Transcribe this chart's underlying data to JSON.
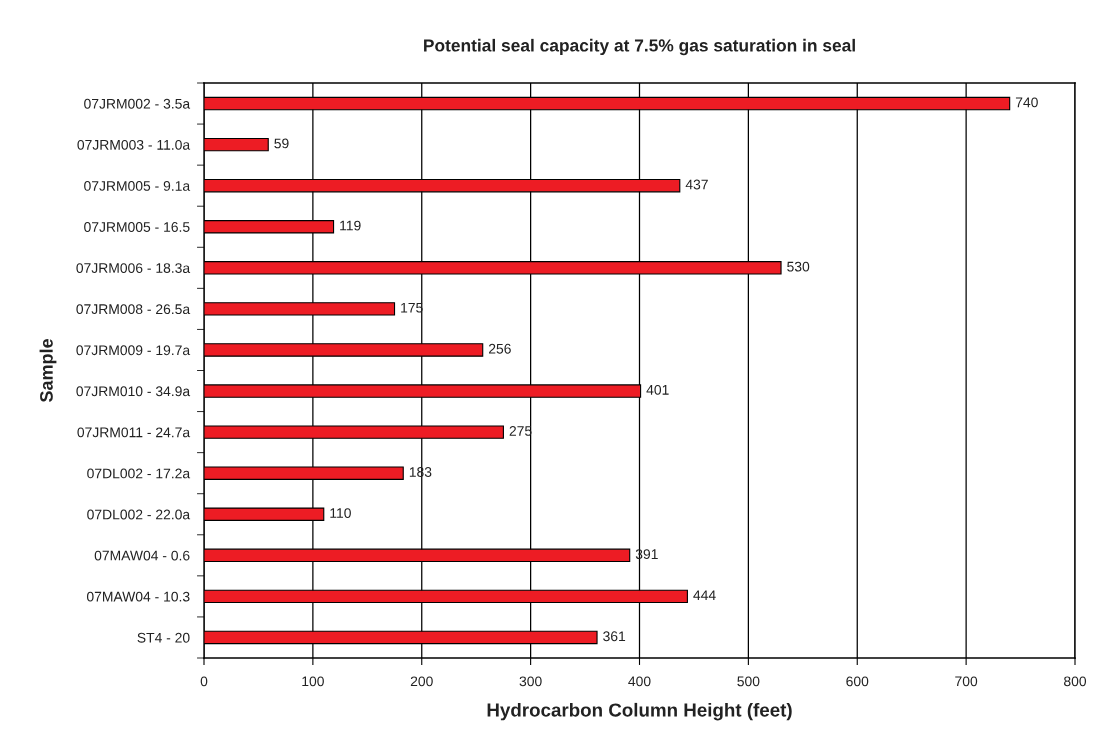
{
  "chart_data": {
    "type": "bar",
    "orientation": "horizontal",
    "title": "Potential seal capacity at 7.5% gas saturation in seal",
    "xlabel": "Hydrocarbon Column Height (feet)",
    "ylabel": "Sample",
    "categories": [
      "07JRM002 - 3.5a",
      "07JRM003 - 11.0a",
      "07JRM005 - 9.1a",
      "07JRM005 - 16.5",
      "07JRM006 - 18.3a",
      "07JRM008 - 26.5a",
      "07JRM009 - 19.7a",
      "07JRM010 - 34.9a",
      "07JRM011 - 24.7a",
      "07DL002 - 17.2a",
      "07DL002 - 22.0a",
      "07MAW04 - 0.6",
      "07MAW04 - 10.3",
      "ST4 - 20"
    ],
    "values": [
      740,
      59,
      437,
      119,
      530,
      175,
      256,
      401,
      275,
      183,
      110,
      391,
      444,
      361
    ],
    "color": "#ed1c24",
    "xlim": [
      0,
      800
    ],
    "xticks": [
      0,
      100,
      200,
      300,
      400,
      500,
      600,
      700,
      800
    ],
    "grid": "x",
    "data_labels": true,
    "legend": false
  }
}
